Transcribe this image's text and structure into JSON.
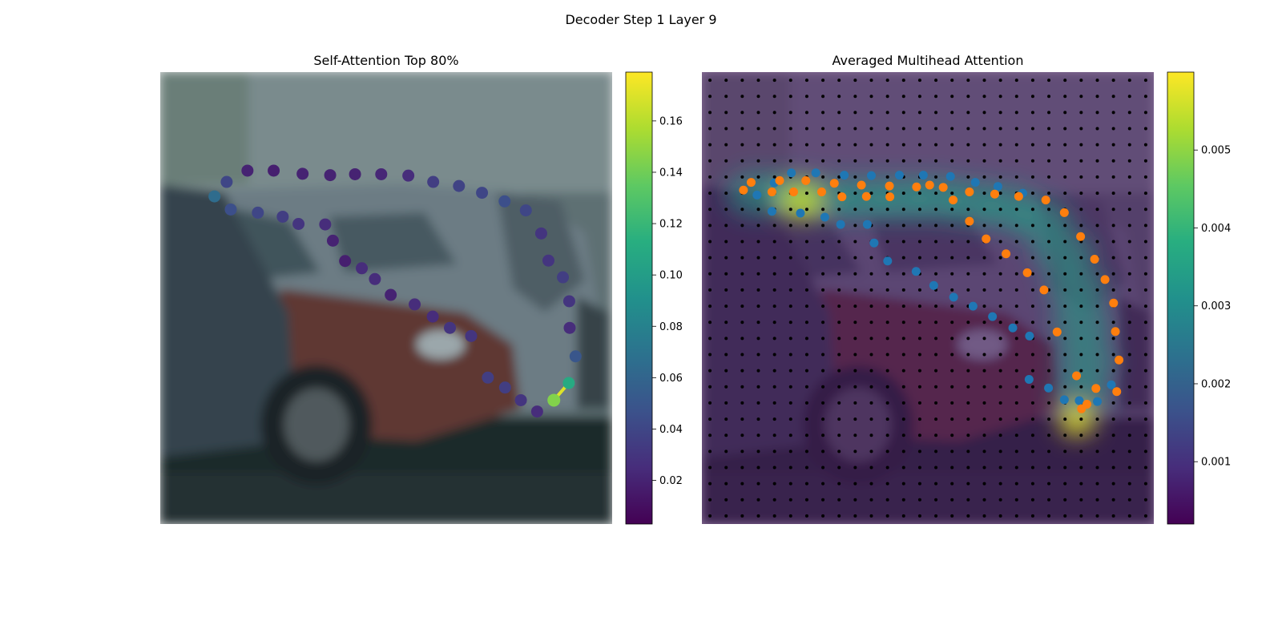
{
  "figure": {
    "suptitle": "Decoder Step 1 Layer 9"
  },
  "chart_data": [
    {
      "type": "scatter",
      "title": "Self-Attention Top 80%",
      "axes_visible": false,
      "background": "photo of parked cars (blurred)",
      "colormap": "viridis",
      "colorbar": {
        "range": [
          0.003,
          0.179
        ],
        "ticks": [
          0.02,
          0.04,
          0.06,
          0.08,
          0.1,
          0.12,
          0.14,
          0.16
        ],
        "tick_labels": [
          "0.02",
          "0.04",
          "0.06",
          "0.08",
          "0.10",
          "0.12",
          "0.14",
          "0.16"
        ]
      },
      "query_point": {
        "x": 0.871,
        "y": 0.726,
        "value": 0.145
      },
      "points": [
        {
          "x": 0.12,
          "y": 0.275,
          "value": 0.065
        },
        {
          "x": 0.147,
          "y": 0.243,
          "value": 0.04
        },
        {
          "x": 0.193,
          "y": 0.218,
          "value": 0.02
        },
        {
          "x": 0.251,
          "y": 0.218,
          "value": 0.018
        },
        {
          "x": 0.315,
          "y": 0.225,
          "value": 0.02
        },
        {
          "x": 0.376,
          "y": 0.228,
          "value": 0.02
        },
        {
          "x": 0.431,
          "y": 0.226,
          "value": 0.02
        },
        {
          "x": 0.489,
          "y": 0.226,
          "value": 0.022
        },
        {
          "x": 0.549,
          "y": 0.229,
          "value": 0.025
        },
        {
          "x": 0.604,
          "y": 0.243,
          "value": 0.035
        },
        {
          "x": 0.661,
          "y": 0.252,
          "value": 0.038
        },
        {
          "x": 0.712,
          "y": 0.267,
          "value": 0.04
        },
        {
          "x": 0.762,
          "y": 0.286,
          "value": 0.045
        },
        {
          "x": 0.809,
          "y": 0.306,
          "value": 0.04
        },
        {
          "x": 0.843,
          "y": 0.357,
          "value": 0.03
        },
        {
          "x": 0.859,
          "y": 0.417,
          "value": 0.03
        },
        {
          "x": 0.891,
          "y": 0.454,
          "value": 0.035
        },
        {
          "x": 0.905,
          "y": 0.507,
          "value": 0.03
        },
        {
          "x": 0.906,
          "y": 0.566,
          "value": 0.025
        },
        {
          "x": 0.919,
          "y": 0.629,
          "value": 0.05
        },
        {
          "x": 0.904,
          "y": 0.688,
          "value": 0.11
        },
        {
          "x": 0.834,
          "y": 0.751,
          "value": 0.025
        },
        {
          "x": 0.798,
          "y": 0.726,
          "value": 0.03
        },
        {
          "x": 0.763,
          "y": 0.698,
          "value": 0.035
        },
        {
          "x": 0.725,
          "y": 0.676,
          "value": 0.035
        },
        {
          "x": 0.688,
          "y": 0.584,
          "value": 0.03
        },
        {
          "x": 0.641,
          "y": 0.566,
          "value": 0.03
        },
        {
          "x": 0.603,
          "y": 0.541,
          "value": 0.025
        },
        {
          "x": 0.563,
          "y": 0.514,
          "value": 0.025
        },
        {
          "x": 0.51,
          "y": 0.493,
          "value": 0.02
        },
        {
          "x": 0.475,
          "y": 0.458,
          "value": 0.025
        },
        {
          "x": 0.446,
          "y": 0.434,
          "value": 0.025
        },
        {
          "x": 0.409,
          "y": 0.418,
          "value": 0.018
        },
        {
          "x": 0.382,
          "y": 0.373,
          "value": 0.02
        },
        {
          "x": 0.365,
          "y": 0.337,
          "value": 0.025
        },
        {
          "x": 0.306,
          "y": 0.336,
          "value": 0.03
        },
        {
          "x": 0.271,
          "y": 0.32,
          "value": 0.035
        },
        {
          "x": 0.216,
          "y": 0.311,
          "value": 0.04
        },
        {
          "x": 0.156,
          "y": 0.304,
          "value": 0.045
        }
      ]
    },
    {
      "type": "heatmap",
      "title": "Averaged Multihead Attention",
      "axes_visible": false,
      "background": "photo of parked cars (blurred) under attention heatmap",
      "colormap": "viridis",
      "grid": {
        "rows": 28,
        "cols": 28,
        "dot_color": "#000000"
      },
      "colorbar": {
        "range": [
          0.0002,
          0.006
        ],
        "ticks": [
          0.001,
          0.002,
          0.003,
          0.004,
          0.005
        ],
        "tick_labels": [
          "0.001",
          "0.002",
          "0.003",
          "0.004",
          "0.005"
        ]
      },
      "hotspots": [
        {
          "x": 0.22,
          "y": 0.285,
          "rx": 0.05,
          "ry": 0.04,
          "value": 0.0055
        },
        {
          "x": 0.83,
          "y": 0.77,
          "rx": 0.04,
          "ry": 0.035,
          "value": 0.0058
        }
      ],
      "series": [
        {
          "color": "#1f77b4",
          "points": [
            {
              "x": 0.122,
              "y": 0.272
            },
            {
              "x": 0.16,
              "y": 0.245
            },
            {
              "x": 0.198,
              "y": 0.223
            },
            {
              "x": 0.252,
              "y": 0.223
            },
            {
              "x": 0.315,
              "y": 0.228
            },
            {
              "x": 0.375,
              "y": 0.229
            },
            {
              "x": 0.437,
              "y": 0.228
            },
            {
              "x": 0.49,
              "y": 0.228
            },
            {
              "x": 0.55,
              "y": 0.231
            },
            {
              "x": 0.605,
              "y": 0.244
            },
            {
              "x": 0.655,
              "y": 0.253
            },
            {
              "x": 0.71,
              "y": 0.268
            },
            {
              "x": 0.155,
              "y": 0.308
            },
            {
              "x": 0.218,
              "y": 0.312
            },
            {
              "x": 0.272,
              "y": 0.321
            },
            {
              "x": 0.307,
              "y": 0.337
            },
            {
              "x": 0.366,
              "y": 0.337
            },
            {
              "x": 0.381,
              "y": 0.378
            },
            {
              "x": 0.411,
              "y": 0.418
            },
            {
              "x": 0.474,
              "y": 0.441
            },
            {
              "x": 0.513,
              "y": 0.472
            },
            {
              "x": 0.557,
              "y": 0.498
            },
            {
              "x": 0.6,
              "y": 0.518
            },
            {
              "x": 0.643,
              "y": 0.541
            },
            {
              "x": 0.688,
              "y": 0.566
            },
            {
              "x": 0.725,
              "y": 0.584
            },
            {
              "x": 0.724,
              "y": 0.68
            },
            {
              "x": 0.767,
              "y": 0.699
            },
            {
              "x": 0.802,
              "y": 0.725
            },
            {
              "x": 0.835,
              "y": 0.727
            },
            {
              "x": 0.906,
              "y": 0.692
            },
            {
              "x": 0.875,
              "y": 0.729
            }
          ]
        },
        {
          "color": "#ff7f0e",
          "points": [
            {
              "x": 0.092,
              "y": 0.261
            },
            {
              "x": 0.109,
              "y": 0.244
            },
            {
              "x": 0.155,
              "y": 0.265
            },
            {
              "x": 0.172,
              "y": 0.24
            },
            {
              "x": 0.203,
              "y": 0.265
            },
            {
              "x": 0.23,
              "y": 0.24
            },
            {
              "x": 0.265,
              "y": 0.265
            },
            {
              "x": 0.293,
              "y": 0.246
            },
            {
              "x": 0.31,
              "y": 0.276
            },
            {
              "x": 0.353,
              "y": 0.25
            },
            {
              "x": 0.364,
              "y": 0.275
            },
            {
              "x": 0.415,
              "y": 0.252
            },
            {
              "x": 0.416,
              "y": 0.276
            },
            {
              "x": 0.475,
              "y": 0.254
            },
            {
              "x": 0.504,
              "y": 0.25
            },
            {
              "x": 0.534,
              "y": 0.255
            },
            {
              "x": 0.556,
              "y": 0.283
            },
            {
              "x": 0.592,
              "y": 0.265
            },
            {
              "x": 0.648,
              "y": 0.27
            },
            {
              "x": 0.701,
              "y": 0.275
            },
            {
              "x": 0.761,
              "y": 0.283
            },
            {
              "x": 0.802,
              "y": 0.311
            },
            {
              "x": 0.838,
              "y": 0.364
            },
            {
              "x": 0.592,
              "y": 0.33
            },
            {
              "x": 0.629,
              "y": 0.369
            },
            {
              "x": 0.673,
              "y": 0.402
            },
            {
              "x": 0.72,
              "y": 0.444
            },
            {
              "x": 0.757,
              "y": 0.482
            },
            {
              "x": 0.869,
              "y": 0.414
            },
            {
              "x": 0.892,
              "y": 0.459
            },
            {
              "x": 0.911,
              "y": 0.511
            },
            {
              "x": 0.915,
              "y": 0.574
            },
            {
              "x": 0.923,
              "y": 0.637
            },
            {
              "x": 0.872,
              "y": 0.7
            },
            {
              "x": 0.918,
              "y": 0.707
            },
            {
              "x": 0.84,
              "y": 0.745
            },
            {
              "x": 0.852,
              "y": 0.735
            },
            {
              "x": 0.829,
              "y": 0.672
            },
            {
              "x": 0.786,
              "y": 0.575
            }
          ]
        }
      ]
    }
  ]
}
